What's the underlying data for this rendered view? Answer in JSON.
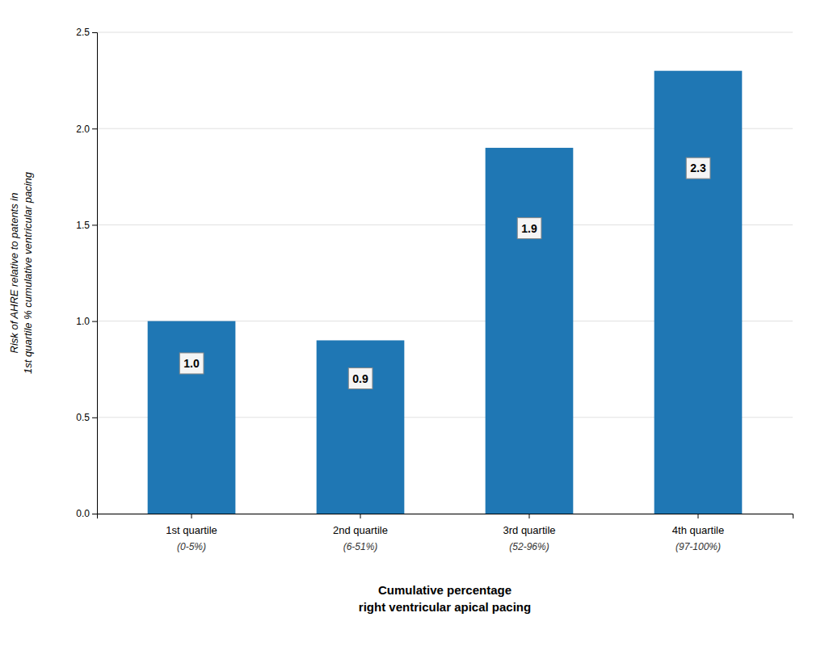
{
  "chart_data": {
    "type": "bar",
    "categories": [
      "1st quartile",
      "2nd quartile",
      "3rd quartile",
      "4th quartile"
    ],
    "category_sublabels": [
      "(0-5%)",
      "(6-51%)",
      "(52-96%)",
      "(97-100%)"
    ],
    "values": [
      1.0,
      0.9,
      1.9,
      2.3
    ],
    "value_labels": [
      "1.0",
      "0.9",
      "1.9",
      "2.3"
    ],
    "data_labels": true,
    "ylabel": "Risk of AHRE relative to patents in\n1st quartile % cumulative ventricular pacing",
    "xlabel": "Cumulative percentage\nright ventricular apical pacing",
    "ylim": [
      0,
      2.5
    ],
    "yticks": [
      {
        "value": 0,
        "label": "0.0"
      },
      0.5,
      {
        "value": 1.0,
        "label": "1.0"
      },
      1.5,
      {
        "value": 2.0,
        "label": "2.0"
      },
      2.5
    ],
    "grid": true
  }
}
